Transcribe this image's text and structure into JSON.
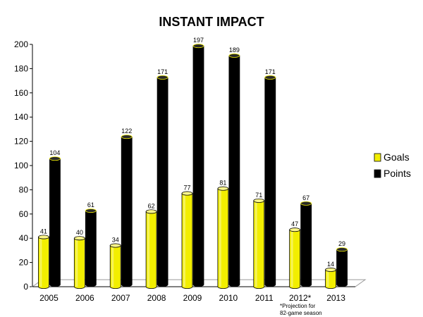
{
  "chart_data": {
    "type": "bar",
    "title": "INSTANT IMPACT",
    "categories": [
      "2005",
      "2006",
      "2007",
      "2008",
      "2009",
      "2010",
      "2011",
      "2012*",
      "2013"
    ],
    "series": [
      {
        "name": "Goals",
        "values": [
          41,
          40,
          34,
          62,
          77,
          81,
          71,
          47,
          14
        ],
        "color": "#f2ee00"
      },
      {
        "name": "Points",
        "values": [
          104,
          61,
          122,
          171,
          197,
          189,
          171,
          67,
          29
        ],
        "color": "#000000"
      }
    ],
    "y_ticks": [
      "0",
      "20",
      "40",
      "60",
      "80",
      "100",
      "120",
      "140",
      "160",
      "180",
      "200"
    ],
    "ylim": [
      0,
      200
    ],
    "grid": false,
    "legend_position": "right",
    "footnote_lines": [
      "*Projection for",
      "82-game season"
    ]
  }
}
